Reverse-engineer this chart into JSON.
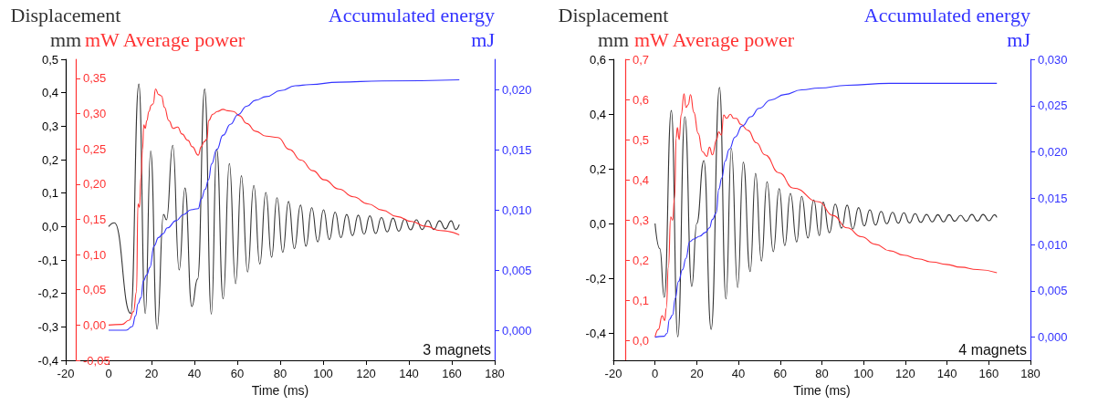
{
  "chart_data": [
    {
      "type": "line",
      "xlabel": "Time (ms)",
      "ylabel": "Displacement\nmm",
      "y2label": "mW Average power",
      "y3label": "Accumulated energy\nmJ",
      "annotations": [
        "3 magnets"
      ],
      "xlim": [
        -20,
        180
      ],
      "xticks": [
        -20,
        0,
        20,
        40,
        60,
        80,
        100,
        120,
        140,
        160,
        180
      ],
      "ylim": [
        -0.4,
        0.5
      ],
      "yticks": [
        {
          "value": -0.4,
          "label": "-0,4"
        },
        {
          "value": -0.3,
          "label": "-0,3"
        },
        {
          "value": -0.2,
          "label": "-0,2"
        },
        {
          "value": -0.1,
          "label": "-0,1"
        },
        {
          "value": 0,
          "label": "0,0"
        },
        {
          "value": 0.1,
          "label": "0,1"
        },
        {
          "value": 0.2,
          "label": "0,2"
        },
        {
          "value": 0.3,
          "label": "0,3"
        },
        {
          "value": 0.4,
          "label": "0,4"
        },
        {
          "value": 0.5,
          "label": "0,5"
        }
      ],
      "y2lim": [
        -0.05,
        0.377
      ],
      "y2ticks": [
        {
          "value": -0.05,
          "label": "-0,05"
        },
        {
          "value": 0,
          "label": "0,00"
        },
        {
          "value": 0.05,
          "label": "0,05"
        },
        {
          "value": 0.1,
          "label": "0,10"
        },
        {
          "value": 0.15,
          "label": "0,15"
        },
        {
          "value": 0.2,
          "label": "0,20"
        },
        {
          "value": 0.25,
          "label": "0,25"
        },
        {
          "value": 0.3,
          "label": "0,30"
        },
        {
          "value": 0.35,
          "label": "0,35"
        }
      ],
      "y3lim": [
        -0.0025,
        0.0225
      ],
      "y3ticks": [
        {
          "value": 0,
          "label": "0,000"
        },
        {
          "value": 0.005,
          "label": "0,005"
        },
        {
          "value": 0.01,
          "label": "0,010"
        },
        {
          "value": 0.015,
          "label": "0,015"
        },
        {
          "value": 0.02,
          "label": "0,020"
        }
      ],
      "series": [
        {
          "color": "#333333",
          "axis": "y",
          "x": [
            0,
            2.7,
            10.3,
            14.1,
            17.1,
            19.6,
            22.6,
            25.6,
            27,
            29.9,
            32.9,
            35.6,
            38.8,
            41.5,
            44.8,
            47.9,
            50.4,
            53.4,
            56.3,
            59.2,
            61.9,
            64.8,
            67.7,
            70.5,
            73.3,
            76,
            78.5,
            81.2,
            83.9,
            86.6,
            89.5,
            92,
            94.7,
            97.5,
            100.2,
            102.9,
            105.6,
            108.3,
            111,
            113.7,
            116.4,
            119.1,
            121.8,
            124.5,
            127.2,
            129.9,
            132.6,
            135.3,
            138,
            140.8,
            143.5,
            146.2,
            148.9,
            151.6,
            154.3,
            157,
            159.7,
            161.9,
            163.5
          ],
          "values": [
            0,
            0.011,
            -0.26,
            0.426,
            -0.26,
            0.226,
            -0.307,
            0.036,
            0.02,
            0.243,
            -0.13,
            0.115,
            -0.239,
            -0.157,
            0.411,
            -0.262,
            0.231,
            -0.216,
            0.188,
            -0.171,
            0.152,
            -0.136,
            0.123,
            -0.112,
            0.102,
            -0.092,
            0.086,
            -0.077,
            0.075,
            -0.066,
            0.064,
            -0.059,
            0.056,
            -0.046,
            0.05,
            -0.039,
            0.043,
            -0.033,
            0.036,
            -0.027,
            0.034,
            -0.023,
            0.032,
            -0.021,
            0.027,
            -0.016,
            0.025,
            -0.014,
            0.022,
            -0.01,
            0.02,
            -0.009,
            0.018,
            -0.009,
            0.017,
            -0.007,
            0.017,
            -0.009,
            0.006
          ]
        },
        {
          "color": "#ff3333",
          "axis": "y2",
          "x": [
            0,
            6.2,
            9.6,
            11.6,
            13,
            13.7,
            14.4,
            15.1,
            15.8,
            16.4,
            17.1,
            17.8,
            18.8,
            19.9,
            20.8,
            21.9,
            23.3,
            24.7,
            26,
            28.1,
            30.1,
            32.2,
            34.2,
            37,
            39,
            41.8,
            43.2,
            44.5,
            45.9,
            46.6,
            48.6,
            50.7,
            53.4,
            55.5,
            58.2,
            61,
            64.4,
            68.5,
            73.5,
            78.9,
            84.3,
            89.7,
            95.2,
            100.6,
            107.3,
            114.1,
            120.9,
            127.6,
            134.4,
            141.2,
            147.9,
            154.7,
            163.5
          ],
          "values": [
            0,
            0.001,
            0.007,
            0.019,
            0.047,
            0.172,
            0.167,
            0.21,
            0.249,
            0.284,
            0.279,
            0.29,
            0.303,
            0.312,
            0.314,
            0.335,
            0.327,
            0.325,
            0.309,
            0.29,
            0.279,
            0.281,
            0.271,
            0.262,
            0.253,
            0.241,
            0.253,
            0.26,
            0.264,
            0.29,
            0.299,
            0.303,
            0.306,
            0.304,
            0.303,
            0.297,
            0.286,
            0.275,
            0.268,
            0.266,
            0.249,
            0.234,
            0.219,
            0.206,
            0.193,
            0.182,
            0.172,
            0.163,
            0.154,
            0.147,
            0.14,
            0.134,
            0.128
          ]
        },
        {
          "color": "#3333ff",
          "axis": "y3",
          "x": [
            0,
            8.2,
            11,
            12.6,
            13.7,
            15.1,
            16.2,
            17.8,
            19.2,
            21.2,
            23.3,
            25.3,
            27.4,
            31.5,
            34.9,
            38.4,
            41.8,
            43.2,
            45,
            46.6,
            48,
            50.4,
            53.4,
            56.8,
            60.3,
            64.4,
            68.5,
            73.5,
            80.3,
            87,
            93.8,
            107.3,
            127.6,
            163.5
          ],
          "values": [
            0,
            0,
            0.0003,
            0.0012,
            0.0022,
            0.0027,
            0.0041,
            0.0046,
            0.0052,
            0.007,
            0.0077,
            0.008,
            0.0085,
            0.0091,
            0.0096,
            0.01,
            0.0101,
            0.0109,
            0.0117,
            0.0125,
            0.0138,
            0.015,
            0.0162,
            0.0171,
            0.0179,
            0.0186,
            0.0191,
            0.0194,
            0.0199,
            0.0203,
            0.0204,
            0.0206,
            0.0207,
            0.0208
          ]
        }
      ]
    },
    {
      "type": "line",
      "xlabel": "Time (ms)",
      "ylabel": "Displacement\nmm",
      "y2label": "mW Average power",
      "y3label": "Accumulated energy\nmJ",
      "annotations": [
        "4 magnets"
      ],
      "xlim": [
        -20,
        180
      ],
      "xticks": [
        -20,
        0,
        20,
        40,
        60,
        80,
        100,
        120,
        140,
        160,
        180
      ],
      "ylim": [
        -0.5,
        0.6
      ],
      "yticks": [
        {
          "value": -0.4,
          "label": "-0,4"
        },
        {
          "value": -0.2,
          "label": "-0,2"
        },
        {
          "value": 0,
          "label": "0,0"
        },
        {
          "value": 0.2,
          "label": "0,2"
        },
        {
          "value": 0.4,
          "label": "0,4"
        },
        {
          "value": 0.6,
          "label": "0,6"
        }
      ],
      "y2lim": [
        -0.05,
        0.7
      ],
      "y2ticks": [
        {
          "value": 0,
          "label": "0,0"
        },
        {
          "value": 0.1,
          "label": "0,1"
        },
        {
          "value": 0.2,
          "label": "0,2"
        },
        {
          "value": 0.3,
          "label": "0,3"
        },
        {
          "value": 0.4,
          "label": "0,4"
        },
        {
          "value": 0.5,
          "label": "0,5"
        },
        {
          "value": 0.6,
          "label": "0,6"
        },
        {
          "value": 0.7,
          "label": "0,7"
        }
      ],
      "y3lim": [
        -0.0025,
        0.03
      ],
      "y3ticks": [
        {
          "value": 0,
          "label": "0,000"
        },
        {
          "value": 0.005,
          "label": "0,005"
        },
        {
          "value": 0.01,
          "label": "0,010"
        },
        {
          "value": 0.015,
          "label": "0,015"
        },
        {
          "value": 0.02,
          "label": "0,020"
        },
        {
          "value": 0.025,
          "label": "0,025"
        },
        {
          "value": 0.03,
          "label": "0,030"
        }
      ],
      "series": [
        {
          "color": "#333333",
          "axis": "y",
          "x": [
            0,
            2.3,
            4.4,
            7.8,
            10.9,
            14.3,
            17.6,
            20,
            23.4,
            26.9,
            30.9,
            34,
            36.6,
            39.6,
            42.3,
            45.6,
            48.2,
            51,
            53.7,
            56.7,
            59.5,
            62.2,
            64.9,
            67.9,
            70.3,
            73.3,
            76.1,
            78.8,
            80.6,
            83.6,
            86.4,
            89.4,
            92.1,
            94.8,
            97.6,
            100.3,
            103,
            105.7,
            108.4,
            111.1,
            113.9,
            116.6,
            119.3,
            122,
            124.7,
            127.4,
            130.2,
            132.9,
            135.6,
            138.3,
            141,
            143.7,
            146.5,
            149.2,
            151.9,
            154.6,
            157.3,
            160.1,
            162.8,
            163.9
          ],
          "values": [
            0,
            -0.092,
            -0.27,
            0.413,
            -0.414,
            0.39,
            -0.23,
            0,
            0.23,
            -0.387,
            0.497,
            -0.276,
            0.274,
            -0.234,
            0.224,
            -0.176,
            0.183,
            -0.137,
            0.152,
            -0.103,
            0.127,
            -0.081,
            0.11,
            -0.068,
            0.099,
            -0.053,
            0.086,
            -0.044,
            0.078,
            -0.034,
            0.071,
            -0.017,
            0.067,
            -0.02,
            0.058,
            -0.009,
            0.05,
            -0.006,
            0.044,
            -0.001,
            0.041,
            0.001,
            0.039,
            0.002,
            0.036,
            0.004,
            0.033,
            0.006,
            0.032,
            0.006,
            0.032,
            0.008,
            0.03,
            0.008,
            0.033,
            0.009,
            0.033,
            0.01,
            0.032,
            0.022
          ]
        },
        {
          "color": "#ff3333",
          "axis": "y2",
          "x": [
            0,
            1.6,
            3.4,
            4.6,
            5.4,
            6.4,
            7.5,
            8.4,
            9.4,
            10.1,
            10.7,
            11.6,
            12.5,
            13.9,
            14.8,
            15.9,
            17,
            18.6,
            20.7,
            22.7,
            24.8,
            26.1,
            27.5,
            29.5,
            30.5,
            31.8,
            32.9,
            34.3,
            36.1,
            37.7,
            39,
            41.1,
            44.5,
            48.6,
            52.7,
            59.5,
            66.3,
            78.5,
            85.3,
            92.1,
            98.9,
            105.7,
            112.5,
            119.3,
            126.1,
            132.9,
            139.7,
            146.5,
            154.6,
            163.9
          ],
          "values": [
            0.008,
            0.027,
            0.061,
            0.049,
            0.08,
            0.182,
            0.307,
            0.299,
            0.356,
            0.504,
            0.53,
            0.5,
            0.561,
            0.614,
            0.58,
            0.587,
            0.612,
            0.568,
            0.515,
            0.47,
            0.458,
            0.481,
            0.462,
            0.5,
            0.519,
            0.511,
            0.561,
            0.553,
            0.563,
            0.553,
            0.553,
            0.538,
            0.523,
            0.492,
            0.462,
            0.417,
            0.379,
            0.345,
            0.311,
            0.28,
            0.258,
            0.239,
            0.223,
            0.212,
            0.203,
            0.195,
            0.189,
            0.182,
            0.176,
            0.168
          ]
        },
        {
          "color": "#3333ff",
          "axis": "y3",
          "x": [
            0,
            4.4,
            5.7,
            6.9,
            8.4,
            9.7,
            11.2,
            13.2,
            14.8,
            16.6,
            18.6,
            21.4,
            24.1,
            26.1,
            27.5,
            29.3,
            30.6,
            32,
            33.6,
            35.6,
            38.4,
            41.8,
            45.9,
            49.9,
            55.4,
            62.2,
            70.3,
            78.5,
            92.1,
            112.5,
            132.9,
            163.9
          ],
          "values": [
            0,
            0.0001,
            0.0004,
            0.0019,
            0.0024,
            0.0042,
            0.006,
            0.0073,
            0.0085,
            0.0103,
            0.0106,
            0.0109,
            0.0113,
            0.0118,
            0.0127,
            0.0134,
            0.016,
            0.0172,
            0.019,
            0.0203,
            0.0216,
            0.0228,
            0.0238,
            0.0247,
            0.0256,
            0.0262,
            0.0267,
            0.0269,
            0.0272,
            0.0274,
            0.0274,
            0.0274
          ]
        }
      ]
    }
  ]
}
